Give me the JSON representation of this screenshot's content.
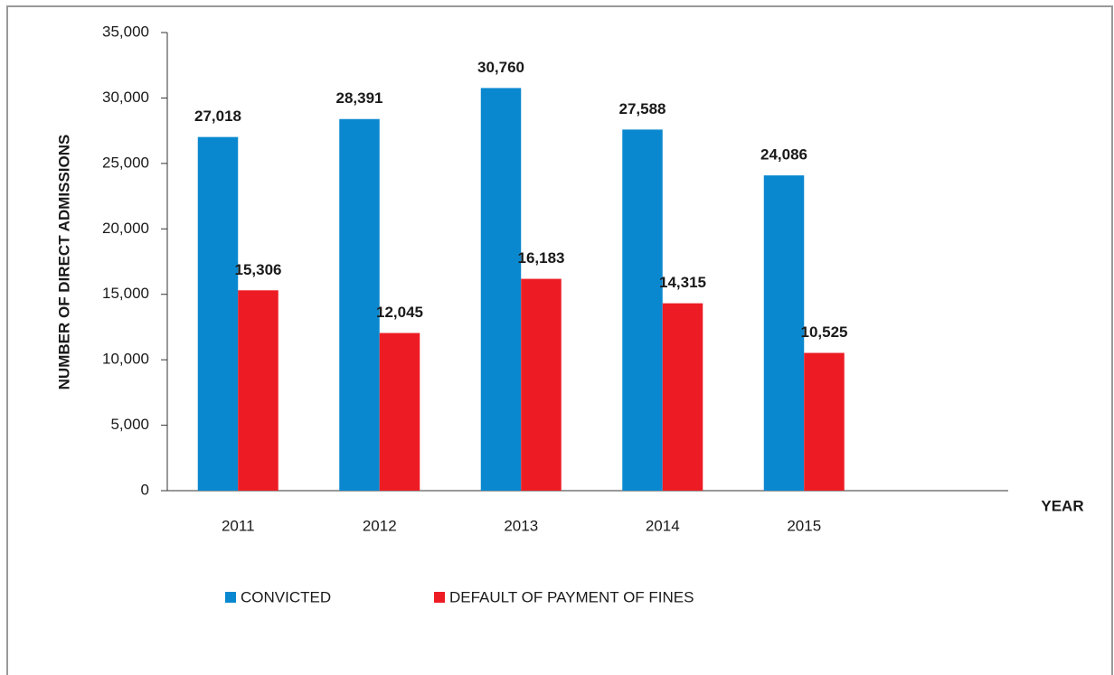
{
  "chart_data": {
    "type": "bar",
    "y_label": "NUMBER OF DIRECT ADMISSIONS",
    "x_label": "YEAR",
    "categories": [
      "2011",
      "2012",
      "2013",
      "2014",
      "2015"
    ],
    "series": [
      {
        "name": "CONVICTED",
        "color": "#0a88cf",
        "values": [
          27018,
          28391,
          30760,
          27588,
          24086
        ],
        "value_labels": [
          "27,018",
          "28,391",
          "30,760",
          "27,588",
          "24,086"
        ]
      },
      {
        "name": "DEFAULT OF PAYMENT OF FINES",
        "color": "#ed1c24",
        "values": [
          15306,
          12045,
          16183,
          14315,
          10525
        ],
        "value_labels": [
          "15,306",
          "12,045",
          "16,183",
          "14,315",
          "10,525"
        ]
      }
    ],
    "ylim": [
      0,
      35000
    ],
    "yticks": [
      0,
      {
        "value": 5000,
        "label": "5,000"
      },
      {
        "value": 10000,
        "label": "10,000"
      },
      {
        "value": 15000,
        "label": "15,000"
      },
      {
        "value": 20000,
        "label": "20,000"
      },
      {
        "value": 25000,
        "label": "25,000"
      },
      {
        "value": 30000,
        "label": "30,000"
      },
      {
        "value": 35000,
        "label": "35,000"
      }
    ],
    "legend": "bottom"
  }
}
